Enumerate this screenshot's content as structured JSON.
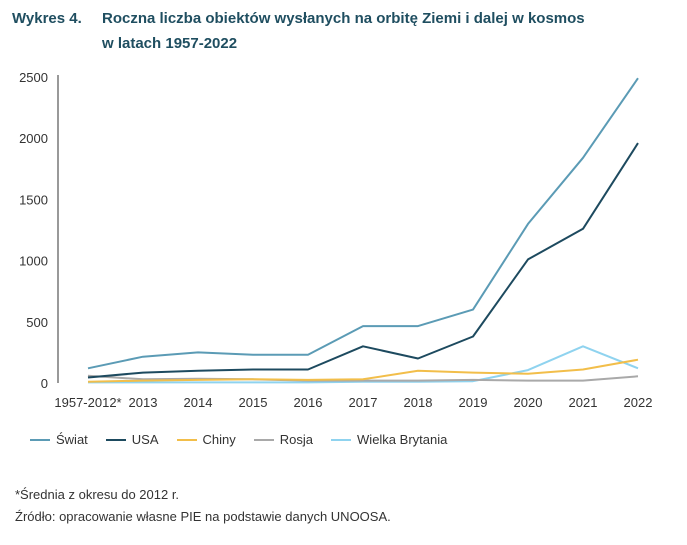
{
  "figure_label": "Wykres 4.",
  "title_line1": "Roczna liczba obiektów wysłanych na orbitę Ziemi i dalej w kosmos",
  "title_line2": "w latach 1957-2022",
  "footnote": "*Średnia z okresu do 2012 r.",
  "source": "Źródło: opracowanie własne PIE na podstawie danych UNOOSA.",
  "chart_data": {
    "type": "line",
    "title": "Roczna liczba obiektów wysłanych na orbitę Ziemi i dalej w kosmos w latach 1957-2022",
    "xlabel": "",
    "ylabel": "",
    "categories": [
      "1957-2012*",
      "2013",
      "2014",
      "2015",
      "2016",
      "2017",
      "2018",
      "2019",
      "2020",
      "2021",
      "2022"
    ],
    "ylim": [
      0,
      2500
    ],
    "yticks": [
      0,
      500,
      1000,
      1500,
      2000,
      2500
    ],
    "grid": false,
    "legend_position": "bottom",
    "series": [
      {
        "name": "Świat",
        "color": "#5b9bb5",
        "values": [
          120,
          215,
          250,
          230,
          230,
          465,
          465,
          600,
          1300,
          1840,
          2490
        ]
      },
      {
        "name": "USA",
        "color": "#1d4a5f",
        "values": [
          45,
          85,
          100,
          110,
          110,
          300,
          200,
          380,
          1010,
          1260,
          1960
        ]
      },
      {
        "name": "Chiny",
        "color": "#f2be4a",
        "values": [
          10,
          20,
          25,
          30,
          25,
          30,
          100,
          85,
          75,
          110,
          190
        ]
      },
      {
        "name": "Rosja",
        "color": "#a9a9a9",
        "values": [
          60,
          30,
          35,
          30,
          20,
          20,
          20,
          25,
          20,
          20,
          55
        ]
      },
      {
        "name": "Wielka Brytania",
        "color": "#8fd3ef",
        "values": [
          5,
          5,
          5,
          5,
          5,
          10,
          10,
          15,
          105,
          300,
          120
        ]
      }
    ]
  }
}
